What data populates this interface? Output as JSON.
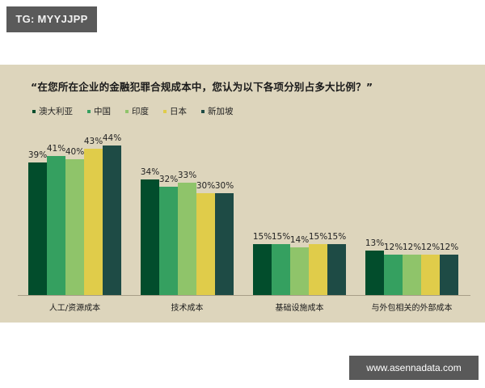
{
  "watermark_top": "TG: MYYJJPP",
  "watermark_bottom": "www.asennadata.com",
  "chart_data": {
    "type": "bar",
    "title": "“在您所在企业的金融犯罪合规成本中，您认为以下各项分别占多大比例？”",
    "xlabel": "",
    "ylabel": "",
    "categories": [
      "人工/资源成本",
      "技术成本",
      "基础设施成本",
      "与外包相关的外部成本"
    ],
    "series": [
      {
        "name": "澳大利亚",
        "color": "#024d2c",
        "values": [
          39,
          34,
          15,
          13
        ],
        "labels": [
          "39%",
          "34%",
          "15%",
          "13%"
        ]
      },
      {
        "name": "中国",
        "color": "#35a060",
        "values": [
          41,
          32,
          15,
          12
        ],
        "labels": [
          "41%",
          "32%",
          "15%",
          "12%"
        ]
      },
      {
        "name": "印度",
        "color": "#8fc46a",
        "values": [
          40,
          33,
          14,
          12
        ],
        "labels": [
          "40%",
          "33%",
          "14%",
          "12%"
        ]
      },
      {
        "name": "日本",
        "color": "#e0cc4a",
        "values": [
          43,
          30,
          15,
          12
        ],
        "labels": [
          "43%",
          "30%",
          "15%",
          "12%"
        ]
      },
      {
        "name": "新加坡",
        "color": "#1e4b45",
        "values": [
          44,
          30,
          15,
          12
        ],
        "labels": [
          "44%",
          "30%",
          "15%",
          "12%"
        ]
      }
    ],
    "ylim": [
      0,
      50
    ],
    "grid": false,
    "legend_position": "top-left",
    "background": "#ddd5bc"
  }
}
